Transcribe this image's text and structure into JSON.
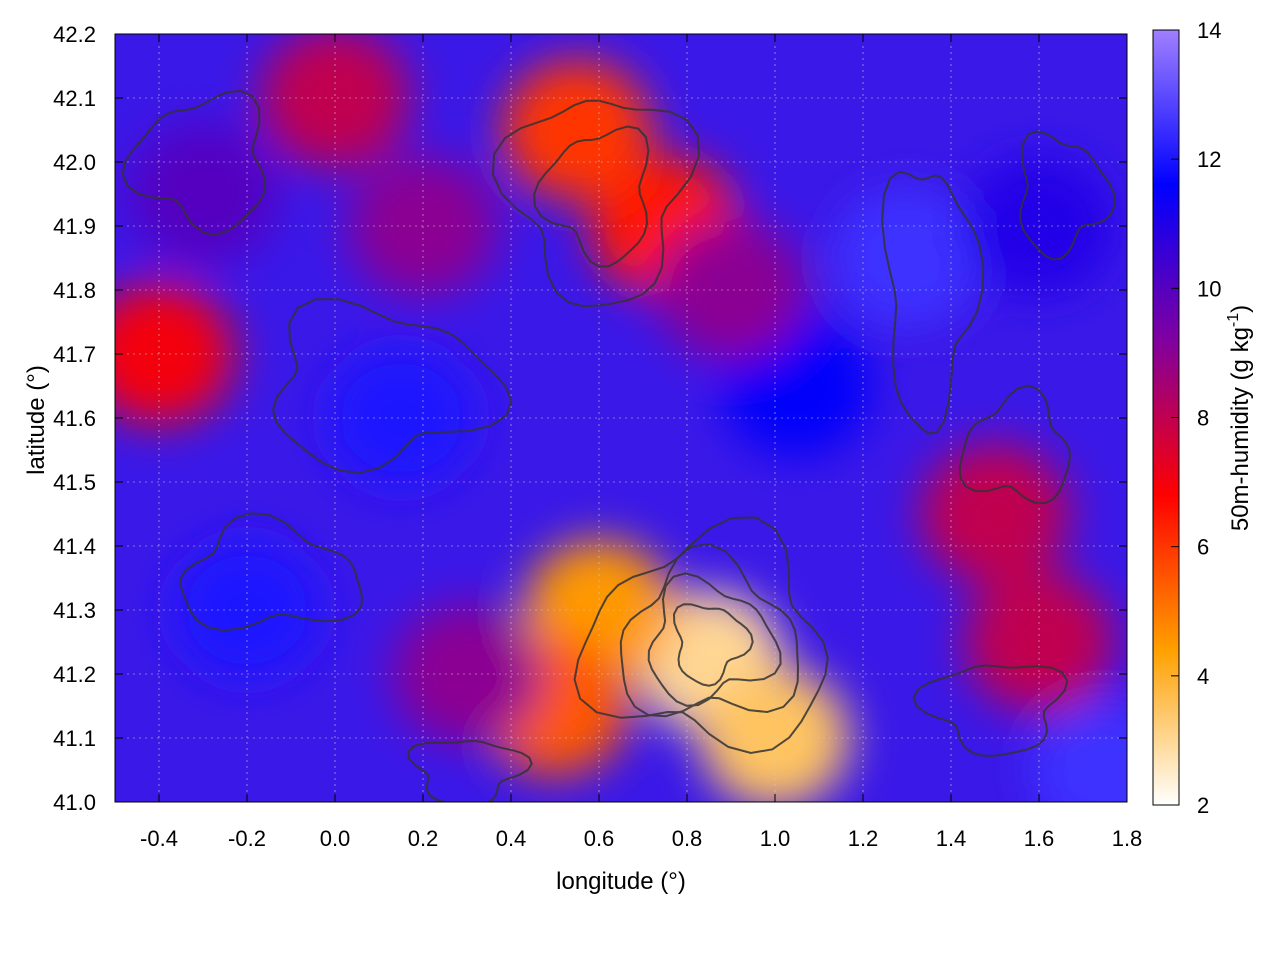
{
  "chart_data": {
    "type": "heatmap",
    "xlabel": "longitude (°)",
    "ylabel": "latitude (°)",
    "colorbar_label_main": "50m-humidity (g kg",
    "colorbar_label_sup": "-1",
    "colorbar_label_close": ")",
    "xlim": [
      -0.5,
      1.8
    ],
    "ylim": [
      41.0,
      42.2
    ],
    "x_ticks": [
      -0.4,
      -0.2,
      0.0,
      0.2,
      0.4,
      0.6,
      0.8,
      1.0,
      1.2,
      1.4,
      1.6,
      1.8
    ],
    "x_tick_labels": [
      "-0.4",
      "-0.2",
      "0.0",
      "0.2",
      "0.4",
      "0.6",
      "0.8",
      "1.0",
      "1.2",
      "1.4",
      "1.6",
      "1.8"
    ],
    "y_ticks": [
      41.0,
      41.1,
      41.2,
      41.3,
      41.4,
      41.5,
      41.6,
      41.7,
      41.8,
      41.9,
      42.0,
      42.1,
      42.2
    ],
    "y_tick_labels": [
      "41.0",
      "41.1",
      "41.2",
      "41.3",
      "41.4",
      "41.5",
      "41.6",
      "41.7",
      "41.8",
      "41.9",
      "42.0",
      "42.1",
      "42.2"
    ],
    "colorbar_range": [
      2,
      14
    ],
    "colorbar_ticks": [
      2,
      4,
      6,
      8,
      10,
      12,
      14
    ],
    "colorbar_tick_labels": [
      "2",
      "4",
      "6",
      "8",
      "10",
      "12",
      "14"
    ],
    "colormap": [
      "#ffffff",
      "#ffa000",
      "#ff0000",
      "#8000a0",
      "#0000ff",
      "#a080ff"
    ],
    "grid": true,
    "contour_color": "#333333",
    "regions": [
      {
        "lon": 0.85,
        "lat": 41.22,
        "value": 3.0
      },
      {
        "lon": 0.6,
        "lat": 41.3,
        "value": 4.5
      },
      {
        "lon": 1.0,
        "lat": 41.1,
        "value": 3.5
      },
      {
        "lon": 0.5,
        "lat": 41.15,
        "value": 5.5
      },
      {
        "lon": 0.75,
        "lat": 41.9,
        "value": 6.5
      },
      {
        "lon": 0.55,
        "lat": 42.05,
        "value": 6.0
      },
      {
        "lon": 0.0,
        "lat": 42.1,
        "value": 8.0
      },
      {
        "lon": -0.4,
        "lat": 41.7,
        "value": 7.0
      },
      {
        "lon": 1.5,
        "lat": 41.45,
        "value": 8.0
      },
      {
        "lon": 1.3,
        "lat": 41.85,
        "value": 12.5
      },
      {
        "lon": 0.15,
        "lat": 41.6,
        "value": 12.0
      },
      {
        "lon": -0.2,
        "lat": 41.3,
        "value": 12.0
      },
      {
        "lon": 1.6,
        "lat": 41.9,
        "value": 11.0
      },
      {
        "lon": -0.3,
        "lat": 41.95,
        "value": 10.0
      },
      {
        "lon": 0.3,
        "lat": 41.2,
        "value": 9.0
      },
      {
        "lon": 1.6,
        "lat": 41.25,
        "value": 8.0
      },
      {
        "lon": 1.05,
        "lat": 41.65,
        "value": 11.5
      },
      {
        "lon": 0.9,
        "lat": 41.8,
        "value": 9.0
      },
      {
        "lon": 0.2,
        "lat": 41.9,
        "value": 9.0
      },
      {
        "lon": 1.75,
        "lat": 41.05,
        "value": 12.5
      }
    ]
  }
}
